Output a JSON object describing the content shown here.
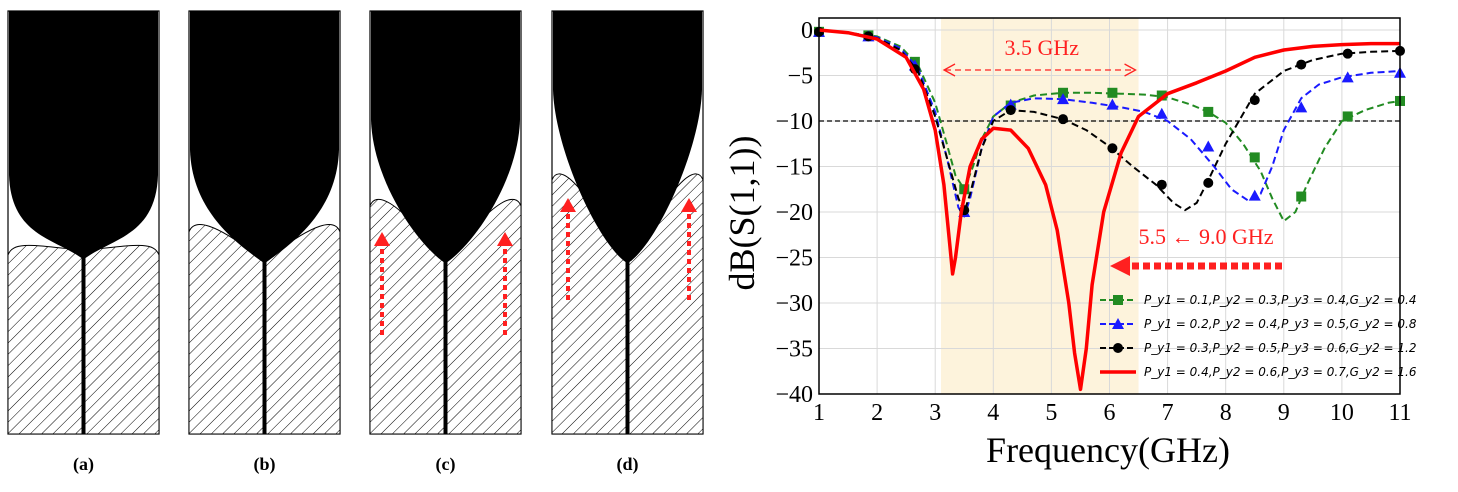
{
  "panels": [
    {
      "id": "a",
      "label": "(a)",
      "tip_rise": 0,
      "arrows": false
    },
    {
      "id": "b",
      "label": "(b)",
      "tip_rise": 0,
      "arrows": false
    },
    {
      "id": "c",
      "label": "(c)",
      "tip_rise": 1,
      "arrows": true
    },
    {
      "id": "d",
      "label": "(d)",
      "tip_rise": 2,
      "arrows": true
    }
  ],
  "colors": {
    "green": "#228B22",
    "blue": "#1a1aff",
    "black": "#000000",
    "red": "#ff0000",
    "band": "#fdf3dc",
    "arrow": "#ff2020"
  },
  "chart_data": {
    "type": "line",
    "xlabel": "Frequency(GHz)",
    "ylabel": "dB(S(1,1))",
    "xlim": [
      1,
      11
    ],
    "ylim": [
      -40,
      0
    ],
    "xticks": [
      1,
      2,
      3,
      4,
      5,
      6,
      7,
      8,
      9,
      10,
      11
    ],
    "yticks": [
      0,
      -5,
      -10,
      -15,
      -20,
      -25,
      -30,
      -35,
      -40
    ],
    "grid": true,
    "legend_position": "lower-right",
    "reference_line": -10,
    "band": {
      "x0": 3.1,
      "x1": 6.5,
      "label": "3.5 GHz"
    },
    "annotation": {
      "text": "5.5 ← 9.0 GHz"
    },
    "series": [
      {
        "name": "P_y1 = 0.1,P_y2 = 0.3,P_y3 = 0.4,G_y2 = 0.4",
        "color_key": "green",
        "marker": "square",
        "dash": true,
        "x": [
          1.0,
          1.5,
          2.0,
          2.4,
          2.7,
          3.0,
          3.2,
          3.35,
          3.5,
          3.65,
          3.8,
          4.0,
          4.3,
          4.7,
          5.2,
          5.7,
          6.2,
          6.6,
          7.0,
          7.4,
          7.7,
          8.0,
          8.3,
          8.6,
          8.8,
          9.0,
          9.2,
          9.4,
          9.7,
          10.0,
          10.4,
          10.8,
          11.0
        ],
        "y": [
          0.0,
          -0.3,
          -0.7,
          -1.8,
          -3.8,
          -8.0,
          -12.5,
          -16.0,
          -17.5,
          -15.0,
          -12.0,
          -9.5,
          -8.0,
          -7.2,
          -6.9,
          -6.9,
          -7.0,
          -7.1,
          -7.4,
          -8.2,
          -9.0,
          -10.2,
          -12.5,
          -15.5,
          -18.5,
          -21.0,
          -20.0,
          -17.0,
          -13.0,
          -10.0,
          -8.8,
          -8.0,
          -7.8
        ],
        "markers_x": [
          1.0,
          1.85,
          2.65,
          3.5,
          4.3,
          5.2,
          6.05,
          6.9,
          7.7,
          8.5,
          9.3,
          10.1,
          11.0
        ],
        "markers_y": [
          -0.2,
          -0.6,
          -3.5,
          -17.5,
          -8.3,
          -6.9,
          -6.9,
          -7.2,
          -9.0,
          -14.0,
          -18.3,
          -9.5,
          -7.8
        ]
      },
      {
        "name": "P_y1 = 0.2,P_y2 = 0.4,P_y3 = 0.5,G_y2 = 0.8",
        "color_key": "blue",
        "marker": "triangle",
        "dash": true,
        "x": [
          1.0,
          1.5,
          2.0,
          2.4,
          2.7,
          3.0,
          3.2,
          3.4,
          3.5,
          3.6,
          3.8,
          4.0,
          4.3,
          4.7,
          5.2,
          5.7,
          6.2,
          6.6,
          7.0,
          7.4,
          7.8,
          8.1,
          8.4,
          8.6,
          8.8,
          9.0,
          9.3,
          9.6,
          10.0,
          10.5,
          11.0
        ],
        "y": [
          0.0,
          -0.3,
          -0.8,
          -2.0,
          -4.2,
          -9.0,
          -14.0,
          -19.5,
          -20.5,
          -18.5,
          -13.0,
          -9.5,
          -8.0,
          -7.5,
          -7.6,
          -8.0,
          -8.5,
          -9.0,
          -10.0,
          -12.0,
          -15.0,
          -17.5,
          -18.8,
          -18.0,
          -15.0,
          -11.0,
          -7.5,
          -6.0,
          -5.2,
          -4.7,
          -4.5
        ],
        "markers_x": [
          1.0,
          1.85,
          2.65,
          3.5,
          4.3,
          5.2,
          6.05,
          6.9,
          7.7,
          8.5,
          9.3,
          10.1,
          11.0
        ],
        "markers_y": [
          -0.2,
          -0.7,
          -3.9,
          -20.0,
          -8.2,
          -7.6,
          -8.2,
          -9.2,
          -12.8,
          -18.2,
          -8.5,
          -5.2,
          -4.7
        ]
      },
      {
        "name": "P_y1 = 0.3,P_y2 = 0.5,P_y3 = 0.6,G_y2 = 1.2",
        "color_key": "black",
        "marker": "circle",
        "dash": true,
        "x": [
          1.0,
          1.5,
          2.0,
          2.4,
          2.7,
          3.0,
          3.2,
          3.4,
          3.5,
          3.6,
          3.8,
          4.0,
          4.3,
          4.7,
          5.2,
          5.6,
          6.0,
          6.4,
          6.8,
          7.1,
          7.3,
          7.5,
          7.7,
          8.0,
          8.5,
          9.0,
          9.5,
          10.0,
          10.5,
          11.0
        ],
        "y": [
          0.0,
          -0.3,
          -0.9,
          -2.2,
          -4.5,
          -9.5,
          -14.0,
          -18.5,
          -20.0,
          -18.0,
          -13.0,
          -10.0,
          -8.8,
          -9.0,
          -9.8,
          -11.0,
          -12.8,
          -15.0,
          -17.0,
          -19.0,
          -19.8,
          -19.0,
          -16.5,
          -12.5,
          -7.0,
          -4.5,
          -3.3,
          -2.6,
          -2.4,
          -2.3
        ],
        "markers_x": [
          1.0,
          1.85,
          2.65,
          3.5,
          4.3,
          5.2,
          6.05,
          6.9,
          7.7,
          8.5,
          9.3,
          10.1,
          11.0
        ],
        "markers_y": [
          -0.2,
          -0.7,
          -4.3,
          -19.8,
          -8.8,
          -9.8,
          -13.0,
          -17.0,
          -16.8,
          -7.7,
          -3.8,
          -2.6,
          -2.3
        ]
      },
      {
        "name": "P_y1 = 0.4,P_y2 = 0.6,P_y3 = 0.7,G_y2 = 1.6",
        "color_key": "red",
        "marker": "none",
        "dash": false,
        "x": [
          1.0,
          1.5,
          2.0,
          2.5,
          2.8,
          3.0,
          3.15,
          3.25,
          3.3,
          3.35,
          3.45,
          3.6,
          3.8,
          4.0,
          4.3,
          4.6,
          4.9,
          5.1,
          5.3,
          5.4,
          5.5,
          5.6,
          5.7,
          5.9,
          6.2,
          6.5,
          7.0,
          7.5,
          8.0,
          8.5,
          9.0,
          9.5,
          10.0,
          10.5,
          11.0
        ],
        "y": [
          0.0,
          -0.3,
          -1.0,
          -3.0,
          -6.5,
          -11.0,
          -17.0,
          -23.5,
          -26.8,
          -25.0,
          -20.0,
          -15.0,
          -12.0,
          -10.8,
          -11.0,
          -13.0,
          -17.0,
          -22.0,
          -30.0,
          -35.5,
          -39.5,
          -35.0,
          -28.0,
          -20.0,
          -13.5,
          -9.5,
          -7.0,
          -5.8,
          -4.5,
          -3.0,
          -2.2,
          -1.8,
          -1.6,
          -1.5,
          -1.5
        ],
        "markers_x": [],
        "markers_y": []
      }
    ]
  }
}
